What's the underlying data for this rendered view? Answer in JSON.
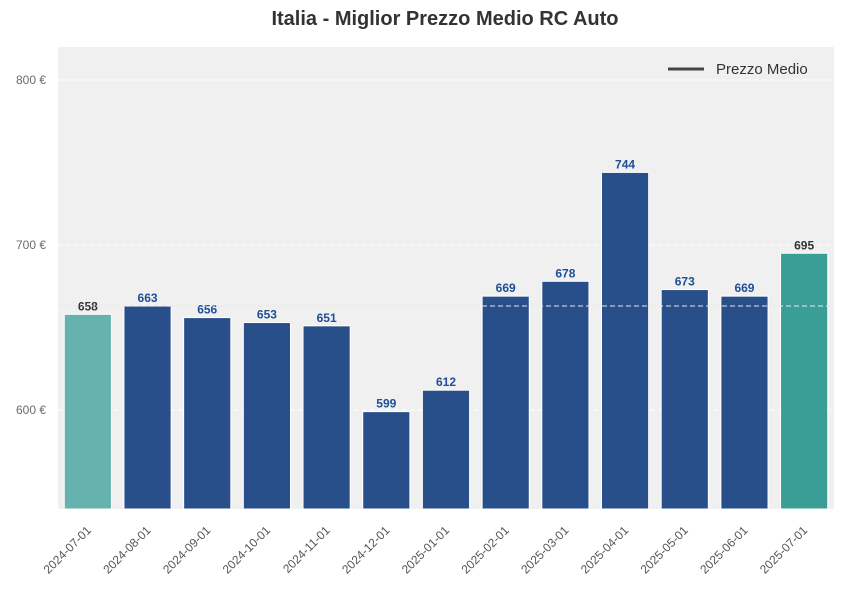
{
  "chart_data": {
    "type": "bar",
    "title": "Italia - Miglior Prezzo Medio RC Auto",
    "xlabel": "",
    "ylabel": "",
    "categories": [
      "2024-07-01",
      "2024-08-01",
      "2024-09-01",
      "2024-10-01",
      "2024-11-01",
      "2024-12-01",
      "2025-01-01",
      "2025-02-01",
      "2025-03-01",
      "2025-04-01",
      "2025-05-01",
      "2025-06-01",
      "2025-07-01"
    ],
    "values": [
      658,
      663,
      656,
      653,
      651,
      599,
      612,
      669,
      678,
      744,
      673,
      669,
      695
    ],
    "value_labels": [
      "658",
      "663",
      "656",
      "653",
      "651",
      "599",
      "612",
      "669",
      "678",
      "744",
      "673",
      "669",
      "695"
    ],
    "bar_colors": [
      "#66b2ae",
      "#284f8a",
      "#284f8a",
      "#284f8a",
      "#284f8a",
      "#284f8a",
      "#284f8a",
      "#284f8a",
      "#284f8a",
      "#284f8a",
      "#284f8a",
      "#284f8a",
      "#3a9e96"
    ],
    "label_colors": [
      "#333333",
      "#1f4e96",
      "#1f4e96",
      "#1f4e96",
      "#1f4e96",
      "#1f4e96",
      "#1f4e96",
      "#1f4e96",
      "#1f4e96",
      "#1f4e96",
      "#1f4e96",
      "#1f4e96",
      "#333333"
    ],
    "ylim": [
      540,
      820
    ],
    "yticks": [
      600,
      700,
      800
    ],
    "ytick_labels": [
      "600 €",
      "700 €",
      "800 €"
    ],
    "reference_line": {
      "value": 663,
      "style": "dashed"
    },
    "legend": {
      "placement": "top-right",
      "entries": [
        {
          "label": "Prezzo Medio",
          "color": "#444444"
        }
      ]
    },
    "grid": true,
    "background_color": "#f0f0f0"
  }
}
